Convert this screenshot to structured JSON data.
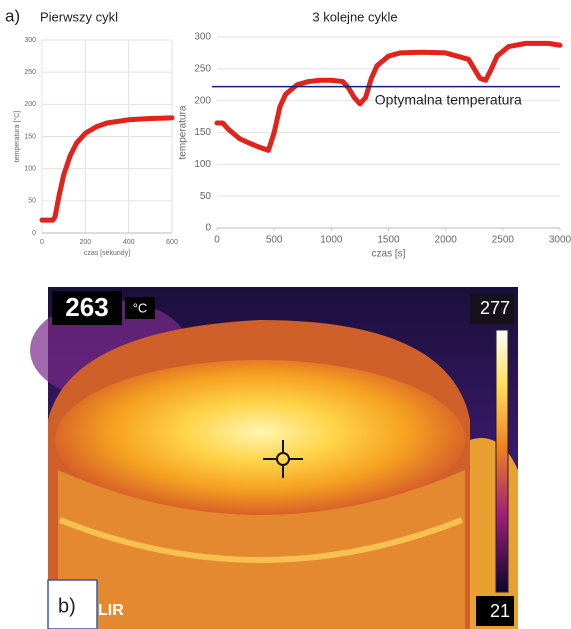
{
  "chart_data": [
    {
      "type": "line",
      "title": "Pierwszy cykl",
      "x_label": "czas [sekundy]",
      "y_label": "temperatura [°C]",
      "x": [
        0,
        50,
        60,
        80,
        100,
        130,
        160,
        200,
        250,
        300,
        400,
        500,
        600
      ],
      "series": [
        {
          "color": "#e0231c",
          "values": [
            20,
            20,
            25,
            60,
            90,
            120,
            140,
            155,
            165,
            171,
            176,
            178,
            179
          ]
        }
      ],
      "xlim": [
        0,
        600
      ],
      "xticks": [
        0,
        200,
        400,
        600
      ],
      "ylim": [
        0,
        300
      ],
      "yticks": [
        0,
        50,
        100,
        150,
        200,
        250,
        300
      ],
      "grid": true
    },
    {
      "type": "line",
      "title": "3 kolejne cykle",
      "x_label": "czas [s]",
      "y_label": "temperatura",
      "x": [
        0,
        50,
        100,
        200,
        300,
        400,
        450,
        500,
        550,
        600,
        700,
        800,
        900,
        1000,
        1100,
        1150,
        1200,
        1250,
        1300,
        1350,
        1400,
        1500,
        1600,
        1800,
        2000,
        2200,
        2250,
        2300,
        2350,
        2400,
        2450,
        2550,
        2700,
        2900,
        3000
      ],
      "series": [
        {
          "color": "#e0231c",
          "values": [
            165,
            165,
            155,
            140,
            132,
            125,
            122,
            150,
            190,
            210,
            225,
            230,
            232,
            232,
            230,
            220,
            205,
            195,
            205,
            235,
            255,
            270,
            275,
            276,
            275,
            265,
            250,
            235,
            232,
            250,
            270,
            285,
            290,
            290,
            287
          ]
        }
      ],
      "reference_line": {
        "value": 222,
        "label": "Optymalna temperatura",
        "color": "#1a1a7a"
      },
      "xlim": [
        0,
        3000
      ],
      "xticks": [
        0,
        500,
        1000,
        1500,
        2000,
        2500,
        3000
      ],
      "ylim": [
        0,
        300
      ],
      "yticks": [
        0,
        50,
        100,
        150,
        200,
        250,
        300
      ],
      "grid": true
    }
  ],
  "panels": {
    "a": "a)",
    "b": "b)"
  },
  "image": {
    "spot_value": "263",
    "unit": "°C",
    "scale_max": "277",
    "scale_min": "21",
    "brand": "LIR"
  }
}
